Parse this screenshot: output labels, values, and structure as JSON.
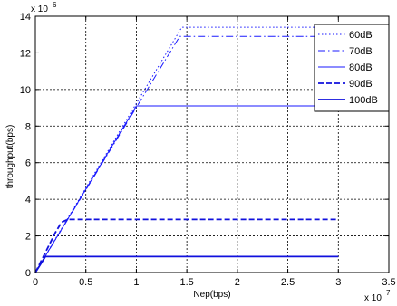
{
  "chart_data": {
    "type": "line",
    "xlabel": "Nep(bps)",
    "ylabel": "throughput(bps)",
    "x_multiplier": "x 10",
    "x_exponent": "7",
    "y_multiplier": "x 10",
    "y_exponent": "6",
    "xlim": [
      0,
      35000000
    ],
    "ylim": [
      0,
      14000000
    ],
    "x_ticks": [
      0,
      5000000,
      10000000,
      15000000,
      20000000,
      25000000,
      30000000,
      35000000
    ],
    "x_tick_labels": [
      "0",
      "0.5",
      "1",
      "1.5",
      "2",
      "2.5",
      "3",
      "3.5"
    ],
    "y_ticks": [
      0,
      2000000,
      4000000,
      6000000,
      8000000,
      10000000,
      12000000,
      14000000
    ],
    "y_tick_labels": [
      "0",
      "2",
      "4",
      "6",
      "8",
      "10",
      "12",
      "14"
    ],
    "grid": true,
    "legend_position": "top-right",
    "series": [
      {
        "name": "60dB",
        "style": "dotted",
        "color": "#1a1aff",
        "width": 1,
        "points": [
          [
            0,
            0
          ],
          [
            14500000,
            13400000
          ],
          [
            30000000,
            13400000
          ]
        ]
      },
      {
        "name": "70dB",
        "style": "dashdot",
        "color": "#1a1aff",
        "width": 1,
        "points": [
          [
            0,
            0
          ],
          [
            14300000,
            12900000
          ],
          [
            30000000,
            12900000
          ]
        ]
      },
      {
        "name": "80dB",
        "style": "solid",
        "color": "#1a1aff",
        "width": 1,
        "points": [
          [
            0,
            0
          ],
          [
            10000000,
            9100000
          ],
          [
            30000000,
            9100000
          ]
        ]
      },
      {
        "name": "90dB",
        "style": "dashed",
        "color": "#1010dd",
        "width": 1.8,
        "points": [
          [
            0,
            0
          ],
          [
            2000000,
            2200000
          ],
          [
            2600000,
            2750000
          ],
          [
            3200000,
            2900000
          ],
          [
            30000000,
            2900000
          ]
        ]
      },
      {
        "name": "100dB",
        "style": "solid",
        "color": "#1010dd",
        "width": 1.8,
        "points": [
          [
            0,
            0
          ],
          [
            1000000,
            870000
          ],
          [
            30000000,
            870000
          ]
        ]
      }
    ]
  }
}
